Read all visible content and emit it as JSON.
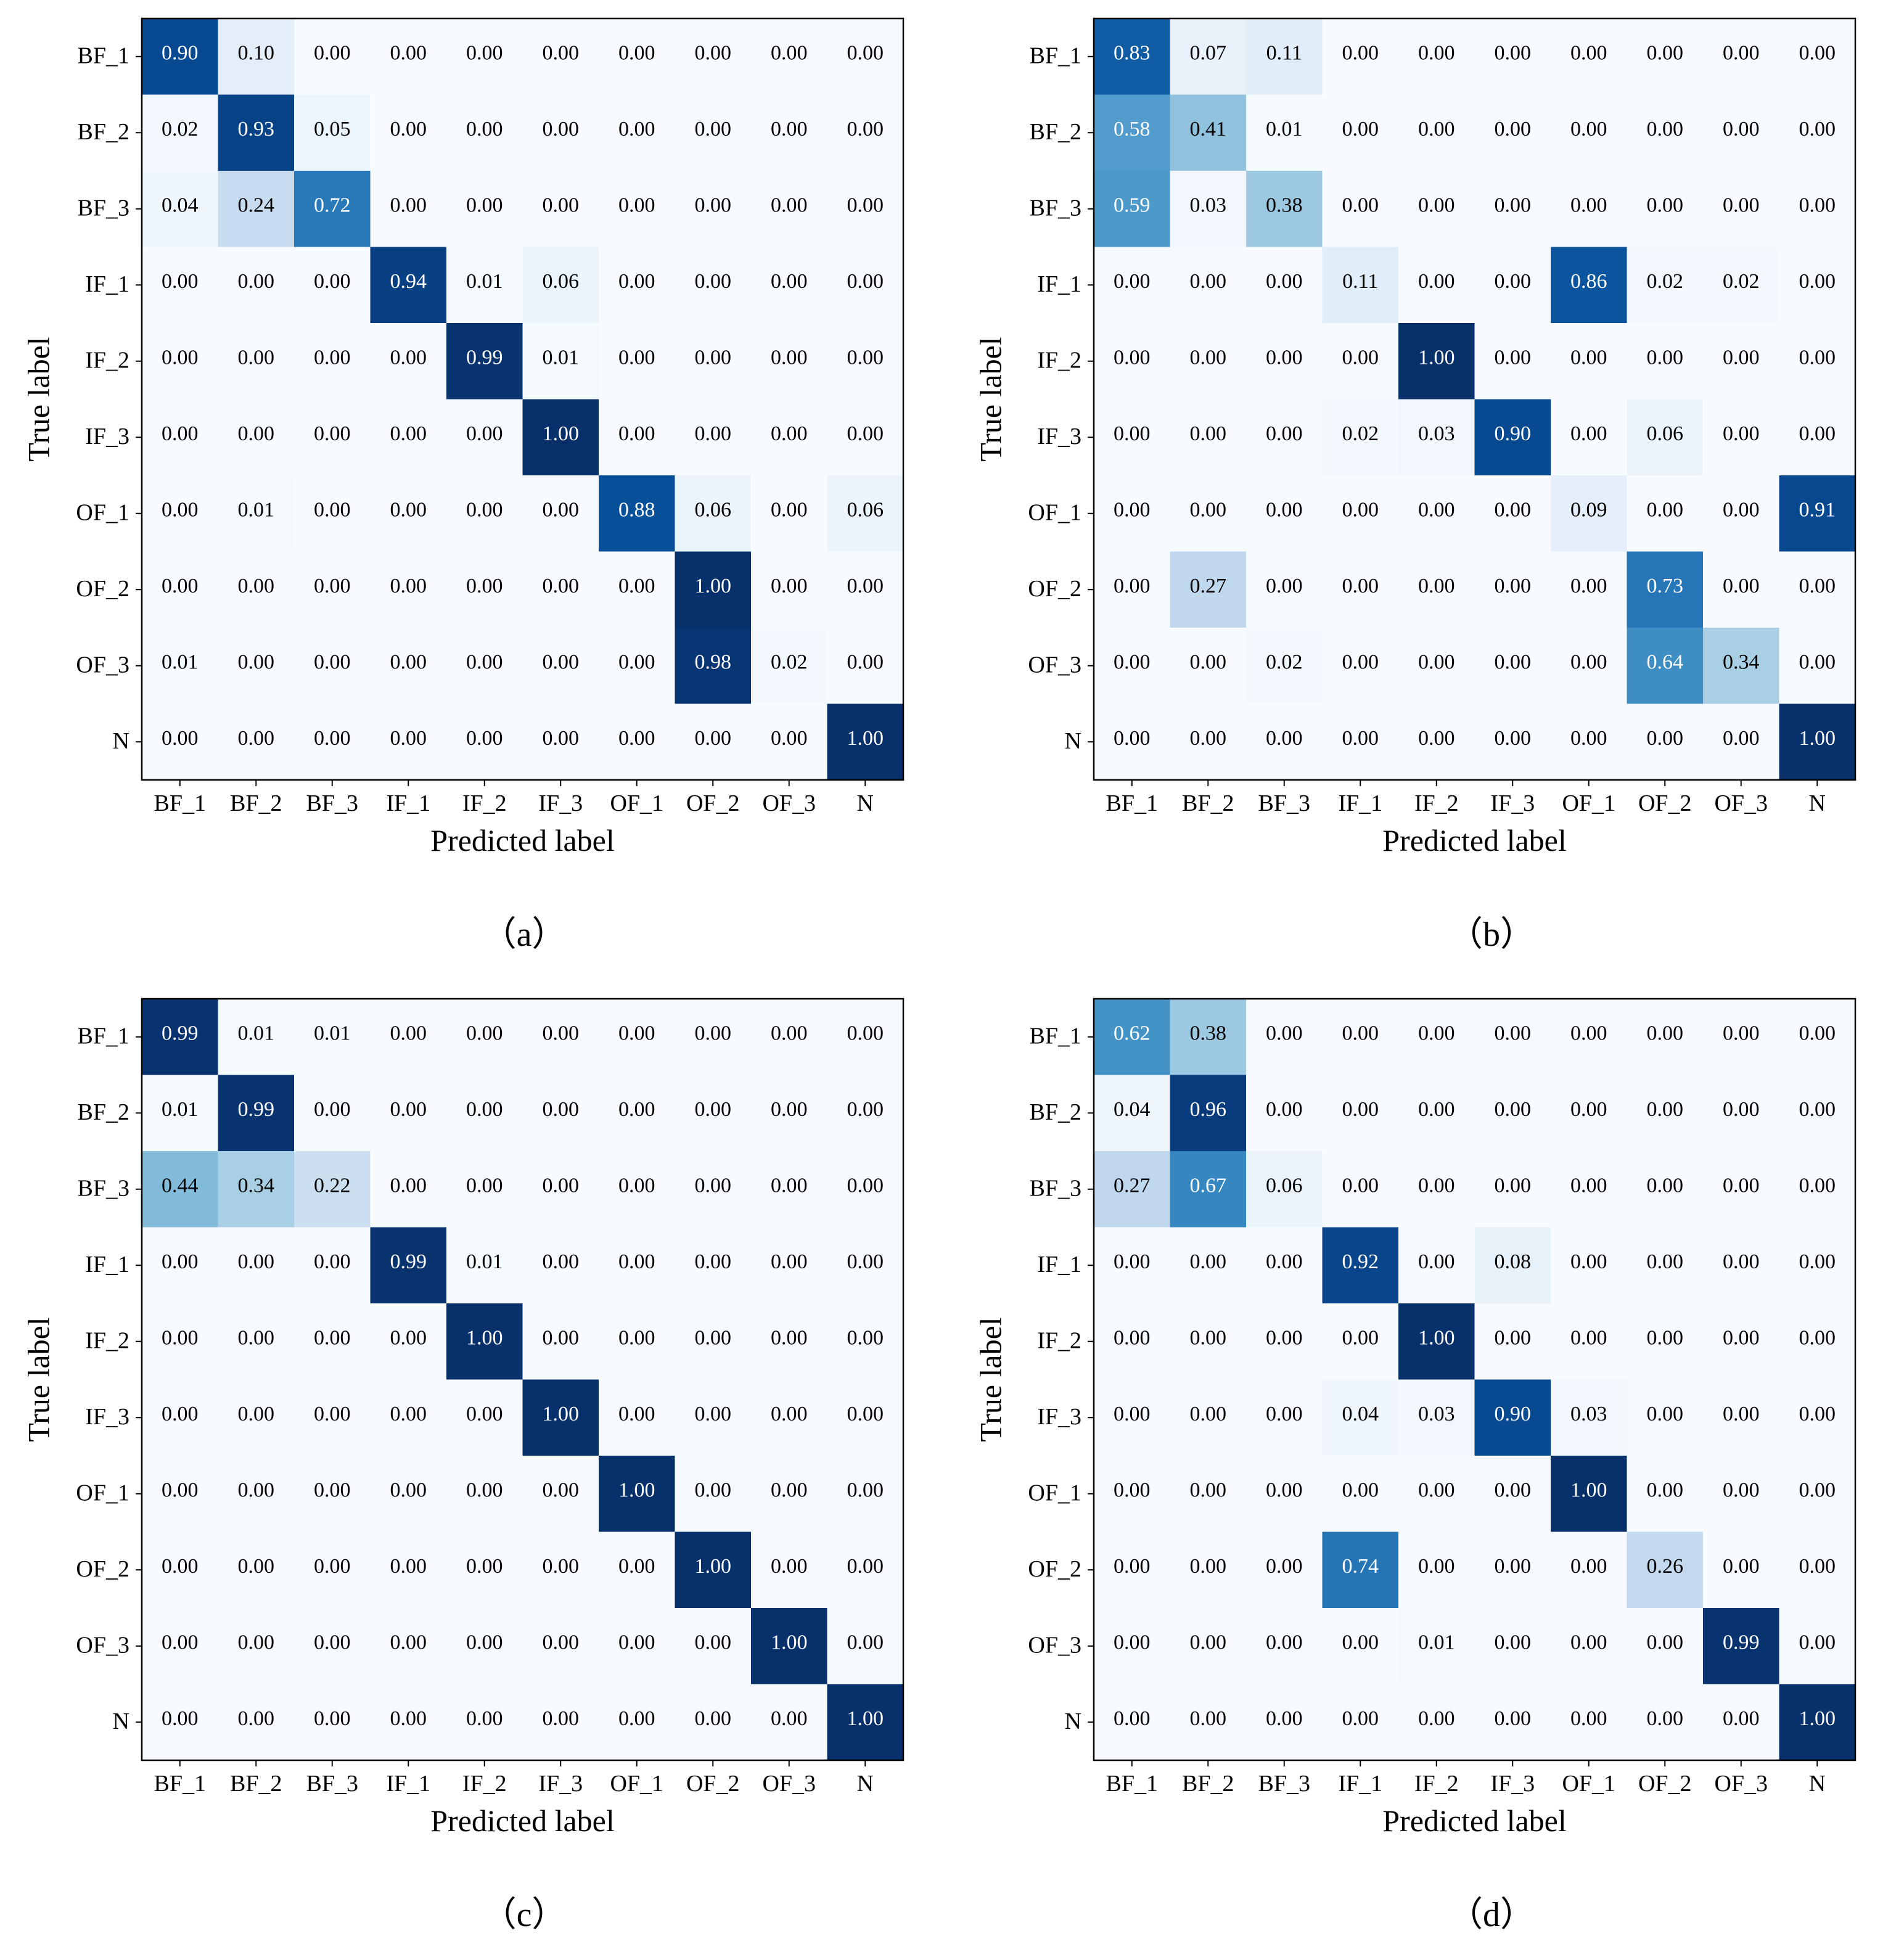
{
  "chart_data": [
    {
      "type": "heatmap",
      "panel_label": "（a）",
      "xlabel": "Predicted label",
      "ylabel": "True label",
      "x_categories": [
        "BF_1",
        "BF_2",
        "BF_3",
        "IF_1",
        "IF_2",
        "IF_3",
        "OF_1",
        "OF_2",
        "OF_3",
        "N"
      ],
      "y_categories": [
        "BF_1",
        "BF_2",
        "BF_3",
        "IF_1",
        "IF_2",
        "IF_3",
        "OF_1",
        "OF_2",
        "OF_3",
        "N"
      ],
      "colormap": "Blues",
      "value_range": [
        0,
        1
      ],
      "values": [
        [
          0.9,
          0.1,
          0.0,
          0.0,
          0.0,
          0.0,
          0.0,
          0.0,
          0.0,
          0.0
        ],
        [
          0.02,
          0.93,
          0.05,
          0.0,
          0.0,
          0.0,
          0.0,
          0.0,
          0.0,
          0.0
        ],
        [
          0.04,
          0.24,
          0.72,
          0.0,
          0.0,
          0.0,
          0.0,
          0.0,
          0.0,
          0.0
        ],
        [
          0.0,
          0.0,
          0.0,
          0.94,
          0.01,
          0.06,
          0.0,
          0.0,
          0.0,
          0.0
        ],
        [
          0.0,
          0.0,
          0.0,
          0.0,
          0.99,
          0.01,
          0.0,
          0.0,
          0.0,
          0.0
        ],
        [
          0.0,
          0.0,
          0.0,
          0.0,
          0.0,
          1.0,
          0.0,
          0.0,
          0.0,
          0.0
        ],
        [
          0.0,
          0.01,
          0.0,
          0.0,
          0.0,
          0.0,
          0.88,
          0.06,
          0.0,
          0.06
        ],
        [
          0.0,
          0.0,
          0.0,
          0.0,
          0.0,
          0.0,
          0.0,
          1.0,
          0.0,
          0.0
        ],
        [
          0.01,
          0.0,
          0.0,
          0.0,
          0.0,
          0.0,
          0.0,
          0.98,
          0.02,
          0.0
        ],
        [
          0.0,
          0.0,
          0.0,
          0.0,
          0.0,
          0.0,
          0.0,
          0.0,
          0.0,
          1.0
        ]
      ]
    },
    {
      "type": "heatmap",
      "panel_label": "（b）",
      "xlabel": "Predicted label",
      "ylabel": "True label",
      "x_categories": [
        "BF_1",
        "BF_2",
        "BF_3",
        "IF_1",
        "IF_2",
        "IF_3",
        "OF_1",
        "OF_2",
        "OF_3",
        "N"
      ],
      "y_categories": [
        "BF_1",
        "BF_2",
        "BF_3",
        "IF_1",
        "IF_2",
        "IF_3",
        "OF_1",
        "OF_2",
        "OF_3",
        "N"
      ],
      "colormap": "Blues",
      "value_range": [
        0,
        1
      ],
      "values": [
        [
          0.83,
          0.07,
          0.11,
          0.0,
          0.0,
          0.0,
          0.0,
          0.0,
          0.0,
          0.0
        ],
        [
          0.58,
          0.41,
          0.01,
          0.0,
          0.0,
          0.0,
          0.0,
          0.0,
          0.0,
          0.0
        ],
        [
          0.59,
          0.03,
          0.38,
          0.0,
          0.0,
          0.0,
          0.0,
          0.0,
          0.0,
          0.0
        ],
        [
          0.0,
          0.0,
          0.0,
          0.11,
          0.0,
          0.0,
          0.86,
          0.02,
          0.02,
          0.0
        ],
        [
          0.0,
          0.0,
          0.0,
          0.0,
          1.0,
          0.0,
          0.0,
          0.0,
          0.0,
          0.0
        ],
        [
          0.0,
          0.0,
          0.0,
          0.02,
          0.03,
          0.9,
          0.0,
          0.06,
          0.0,
          0.0
        ],
        [
          0.0,
          0.0,
          0.0,
          0.0,
          0.0,
          0.0,
          0.09,
          0.0,
          0.0,
          0.91
        ],
        [
          0.0,
          0.27,
          0.0,
          0.0,
          0.0,
          0.0,
          0.0,
          0.73,
          0.0,
          0.0
        ],
        [
          0.0,
          0.0,
          0.02,
          0.0,
          0.0,
          0.0,
          0.0,
          0.64,
          0.34,
          0.0
        ],
        [
          0.0,
          0.0,
          0.0,
          0.0,
          0.0,
          0.0,
          0.0,
          0.0,
          0.0,
          1.0
        ]
      ]
    },
    {
      "type": "heatmap",
      "panel_label": "（c）",
      "xlabel": "Predicted label",
      "ylabel": "True label",
      "x_categories": [
        "BF_1",
        "BF_2",
        "BF_3",
        "IF_1",
        "IF_2",
        "IF_3",
        "OF_1",
        "OF_2",
        "OF_3",
        "N"
      ],
      "y_categories": [
        "BF_1",
        "BF_2",
        "BF_3",
        "IF_1",
        "IF_2",
        "IF_3",
        "OF_1",
        "OF_2",
        "OF_3",
        "N"
      ],
      "colormap": "Blues",
      "value_range": [
        0,
        1
      ],
      "values": [
        [
          0.99,
          0.01,
          0.01,
          0.0,
          0.0,
          0.0,
          0.0,
          0.0,
          0.0,
          0.0
        ],
        [
          0.01,
          0.99,
          0.0,
          0.0,
          0.0,
          0.0,
          0.0,
          0.0,
          0.0,
          0.0
        ],
        [
          0.44,
          0.34,
          0.22,
          0.0,
          0.0,
          0.0,
          0.0,
          0.0,
          0.0,
          0.0
        ],
        [
          0.0,
          0.0,
          0.0,
          0.99,
          0.01,
          0.0,
          0.0,
          0.0,
          0.0,
          0.0
        ],
        [
          0.0,
          0.0,
          0.0,
          0.0,
          1.0,
          0.0,
          0.0,
          0.0,
          0.0,
          0.0
        ],
        [
          0.0,
          0.0,
          0.0,
          0.0,
          0.0,
          1.0,
          0.0,
          0.0,
          0.0,
          0.0
        ],
        [
          0.0,
          0.0,
          0.0,
          0.0,
          0.0,
          0.0,
          1.0,
          0.0,
          0.0,
          0.0
        ],
        [
          0.0,
          0.0,
          0.0,
          0.0,
          0.0,
          0.0,
          0.0,
          1.0,
          0.0,
          0.0
        ],
        [
          0.0,
          0.0,
          0.0,
          0.0,
          0.0,
          0.0,
          0.0,
          0.0,
          1.0,
          0.0
        ],
        [
          0.0,
          0.0,
          0.0,
          0.0,
          0.0,
          0.0,
          0.0,
          0.0,
          0.0,
          1.0
        ]
      ]
    },
    {
      "type": "heatmap",
      "panel_label": "（d）",
      "xlabel": "Predicted label",
      "ylabel": "True label",
      "x_categories": [
        "BF_1",
        "BF_2",
        "BF_3",
        "IF_1",
        "IF_2",
        "IF_3",
        "OF_1",
        "OF_2",
        "OF_3",
        "N"
      ],
      "y_categories": [
        "BF_1",
        "BF_2",
        "BF_3",
        "IF_1",
        "IF_2",
        "IF_3",
        "OF_1",
        "OF_2",
        "OF_3",
        "N"
      ],
      "colormap": "Blues",
      "value_range": [
        0,
        1
      ],
      "values": [
        [
          0.62,
          0.38,
          0.0,
          0.0,
          0.0,
          0.0,
          0.0,
          0.0,
          0.0,
          0.0
        ],
        [
          0.04,
          0.96,
          0.0,
          0.0,
          0.0,
          0.0,
          0.0,
          0.0,
          0.0,
          0.0
        ],
        [
          0.27,
          0.67,
          0.06,
          0.0,
          0.0,
          0.0,
          0.0,
          0.0,
          0.0,
          0.0
        ],
        [
          0.0,
          0.0,
          0.0,
          0.92,
          0.0,
          0.08,
          0.0,
          0.0,
          0.0,
          0.0
        ],
        [
          0.0,
          0.0,
          0.0,
          0.0,
          1.0,
          0.0,
          0.0,
          0.0,
          0.0,
          0.0
        ],
        [
          0.0,
          0.0,
          0.0,
          0.04,
          0.03,
          0.9,
          0.03,
          0.0,
          0.0,
          0.0
        ],
        [
          0.0,
          0.0,
          0.0,
          0.0,
          0.0,
          0.0,
          1.0,
          0.0,
          0.0,
          0.0
        ],
        [
          0.0,
          0.0,
          0.0,
          0.74,
          0.0,
          0.0,
          0.0,
          0.26,
          0.0,
          0.0
        ],
        [
          0.0,
          0.0,
          0.0,
          0.0,
          0.01,
          0.0,
          0.0,
          0.0,
          0.99,
          0.0
        ],
        [
          0.0,
          0.0,
          0.0,
          0.0,
          0.0,
          0.0,
          0.0,
          0.0,
          0.0,
          1.0
        ]
      ]
    }
  ]
}
